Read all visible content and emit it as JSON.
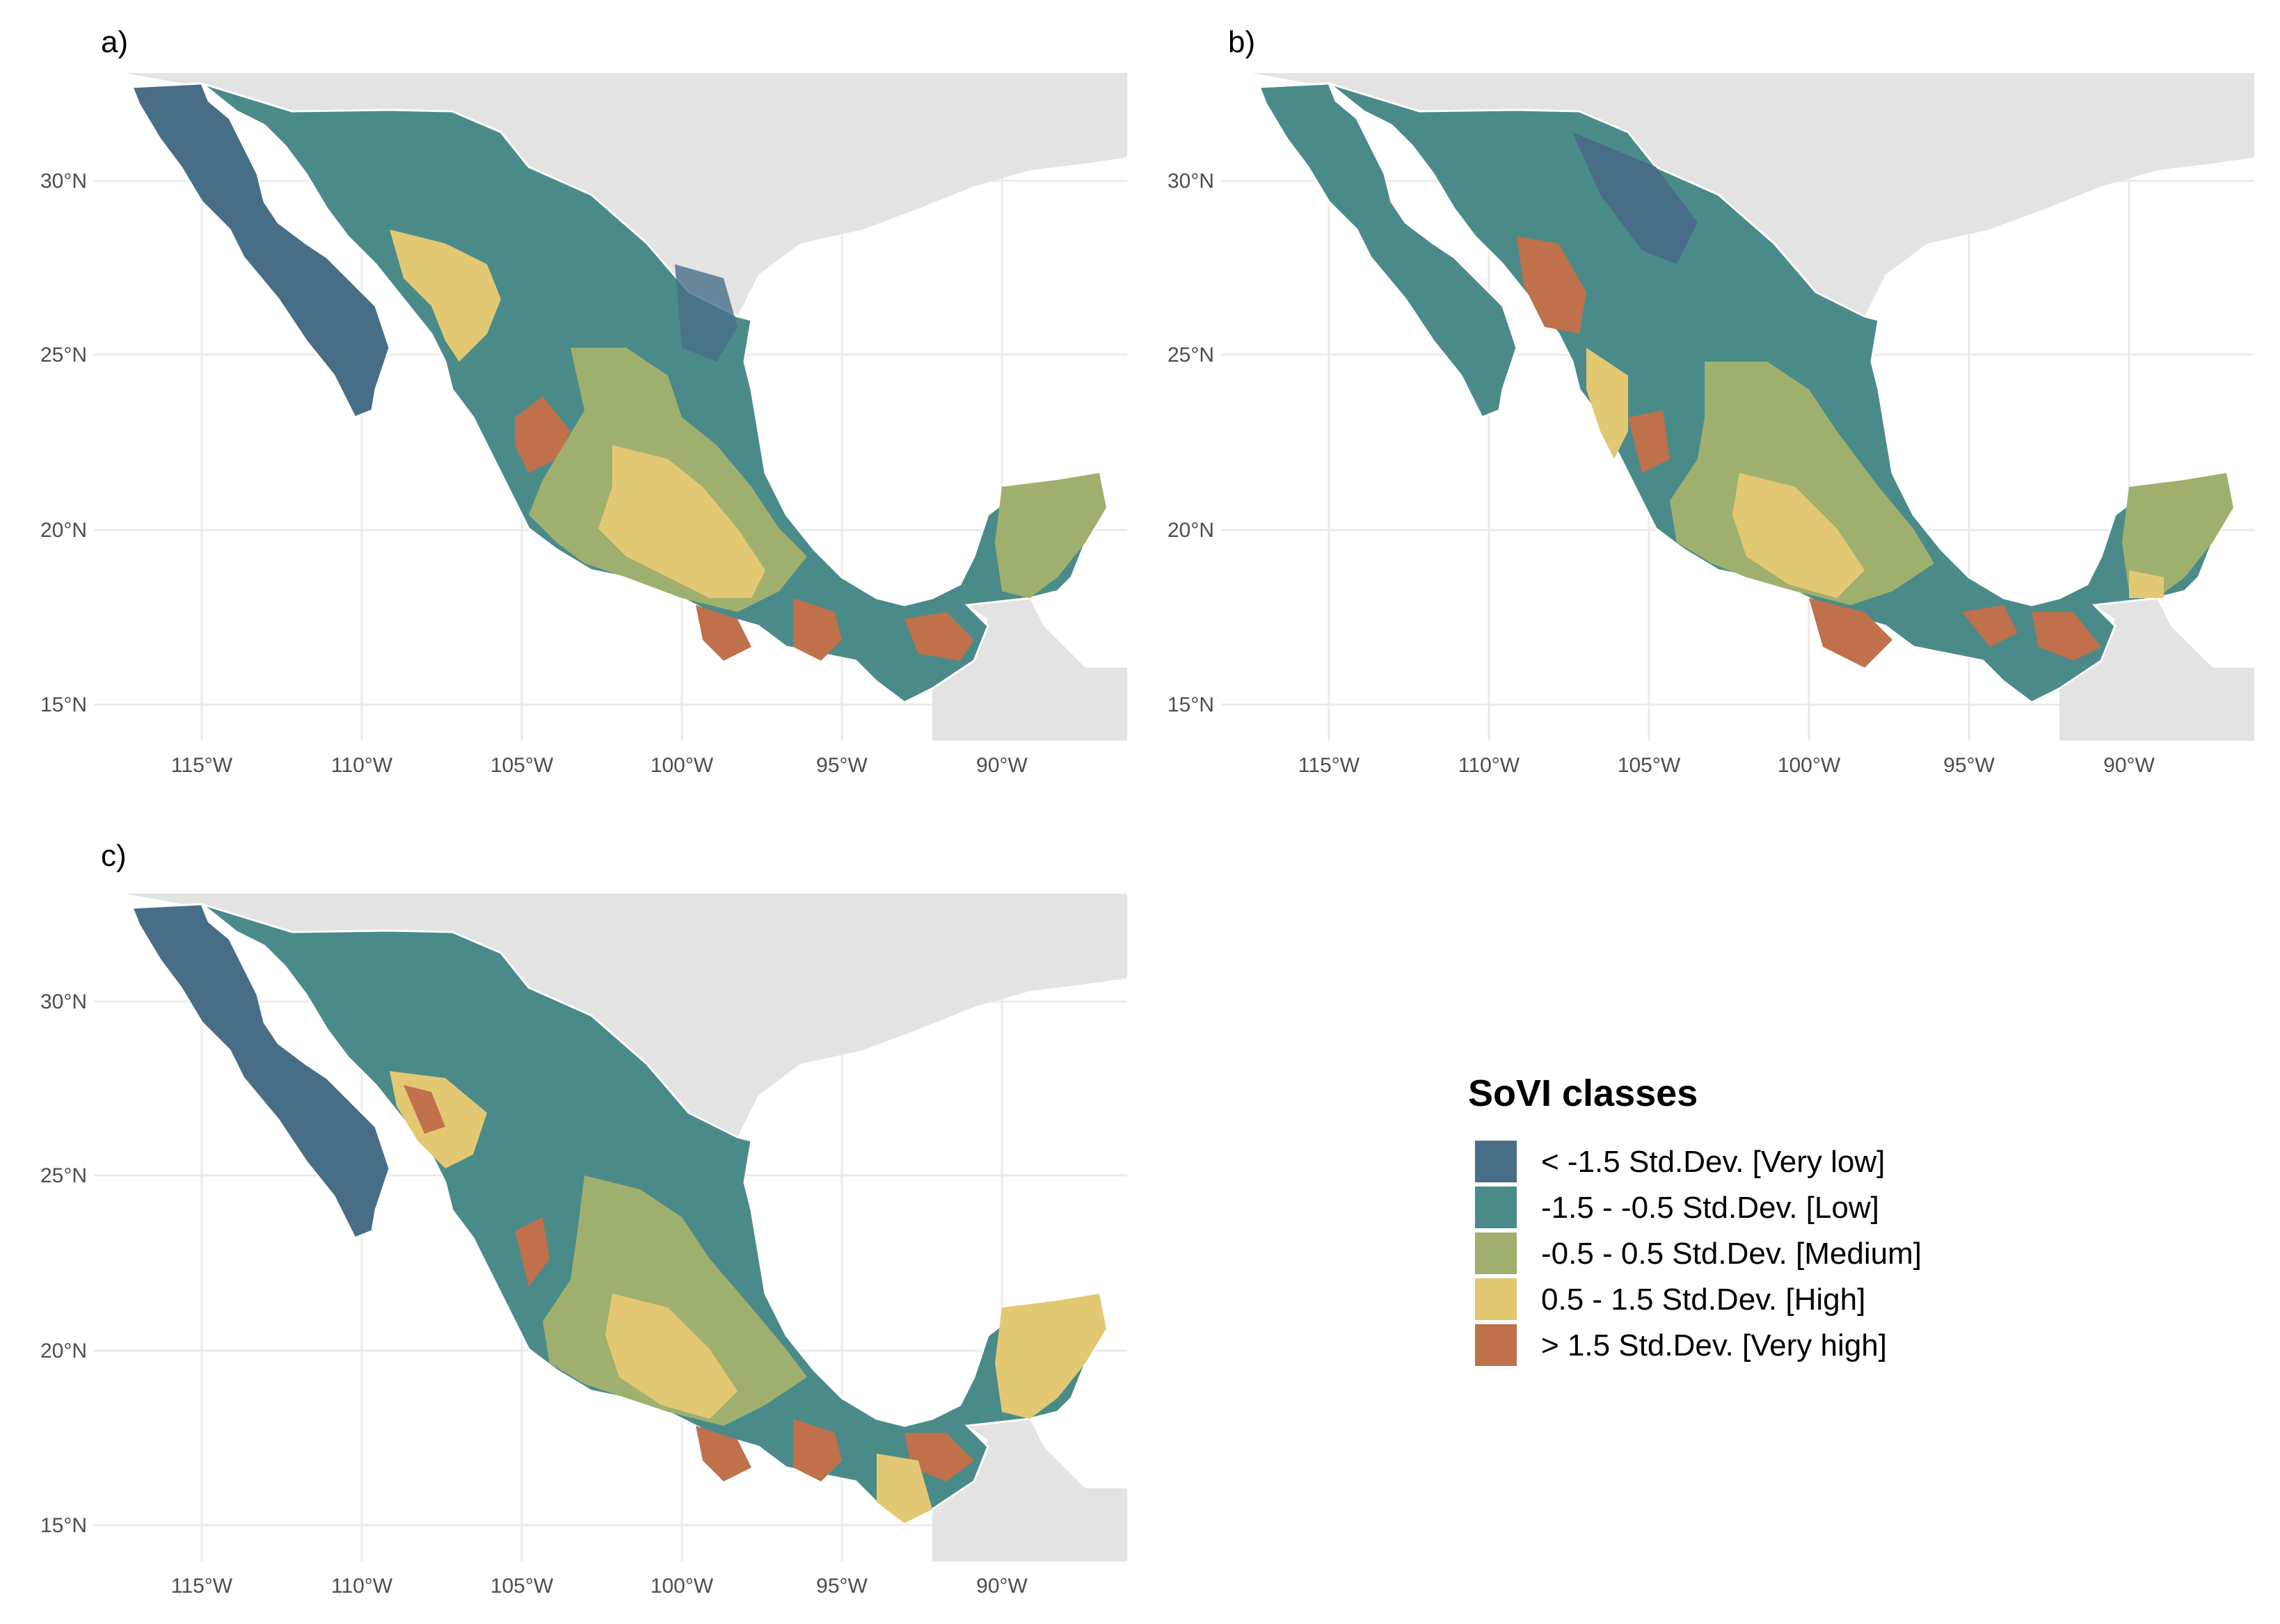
{
  "panels": [
    {
      "label": "a)"
    },
    {
      "label": "b)"
    },
    {
      "label": "c)"
    }
  ],
  "axes": {
    "lat_ticks": [
      "30°N",
      "25°N",
      "20°N",
      "15°N"
    ],
    "lon_ticks": [
      "115°W",
      "110°W",
      "105°W",
      "100°W",
      "95°W",
      "90°W"
    ]
  },
  "legend": {
    "title": "SoVI classes",
    "items": [
      {
        "label": "< -1.5 Std.Dev. [Very low]",
        "color": "#476e86"
      },
      {
        "label": "-1.5 - -0.5 Std.Dev. [Low]",
        "color": "#4a8b8a"
      },
      {
        "label": "-0.5 - 0.5 Std.Dev. [Medium]",
        "color": "#9fb06e"
      },
      {
        "label": "0.5 - 1.5 Std.Dev. [High]",
        "color": "#e3c873"
      },
      {
        "label": "> 1.5 Std.Dev. [Very high]",
        "color": "#c0704a"
      }
    ]
  },
  "colors": {
    "land_background": "#e3e3e3",
    "grid": "#ebebeb",
    "borders": "#ffffff"
  }
}
